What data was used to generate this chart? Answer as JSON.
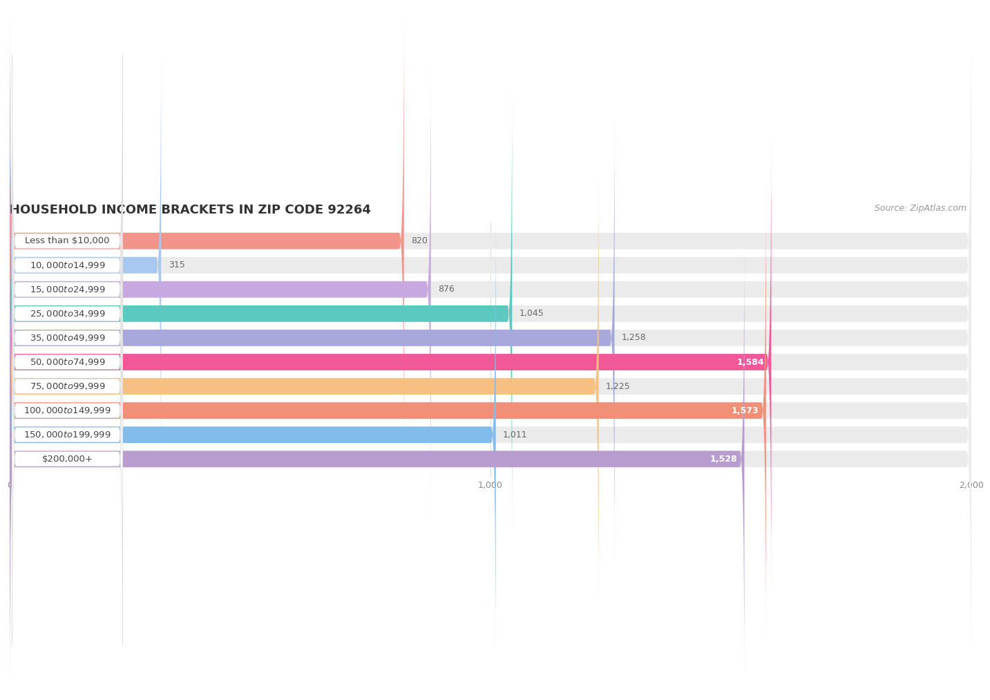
{
  "title": "HOUSEHOLD INCOME BRACKETS IN ZIP CODE 92264",
  "source": "Source: ZipAtlas.com",
  "categories": [
    "Less than $10,000",
    "$10,000 to $14,999",
    "$15,000 to $24,999",
    "$25,000 to $34,999",
    "$35,000 to $49,999",
    "$50,000 to $74,999",
    "$75,000 to $99,999",
    "$100,000 to $149,999",
    "$150,000 to $199,999",
    "$200,000+"
  ],
  "values": [
    820,
    315,
    876,
    1045,
    1258,
    1584,
    1225,
    1573,
    1011,
    1528
  ],
  "bar_colors": [
    "#F2948A",
    "#A8C8F2",
    "#C8A8E0",
    "#5CC8C0",
    "#A8A8DC",
    "#F05898",
    "#F8C080",
    "#F09078",
    "#82BCEC",
    "#B89CD0"
  ],
  "background_color": "#ffffff",
  "bar_bg_color": "#ebebeb",
  "xlim": [
    0,
    2000
  ],
  "xticks": [
    0,
    1000,
    2000
  ],
  "title_fontsize": 13,
  "label_fontsize": 9.5,
  "value_fontsize": 9,
  "source_fontsize": 9
}
